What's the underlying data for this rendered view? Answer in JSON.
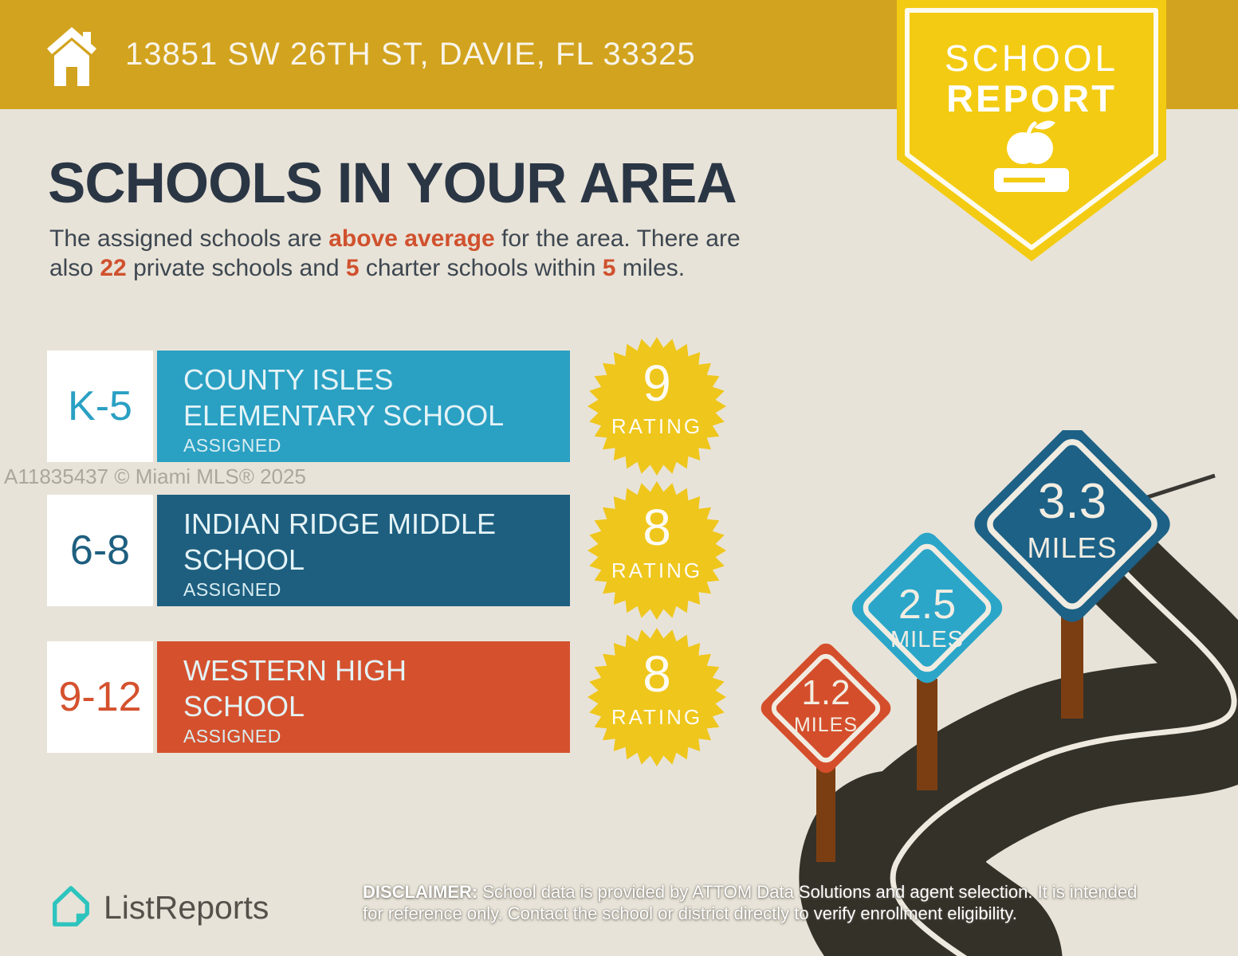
{
  "header": {
    "address": "13851 SW 26TH ST, DAVIE, FL 33325"
  },
  "ribbon": {
    "line1": "SCHOOL",
    "line2": "REPORT"
  },
  "main": {
    "title": "SCHOOLS IN YOUR AREA",
    "intro_line1": [
      {
        "t": "The assigned schools are "
      },
      {
        "t": "above average",
        "hl": true
      },
      {
        "t": " for the area. There are"
      }
    ],
    "intro_line2": [
      {
        "t": "also "
      },
      {
        "t": "22",
        "hl": true
      },
      {
        "t": " private schools and "
      },
      {
        "t": "5",
        "hl": true
      },
      {
        "t": " charter schools within "
      },
      {
        "t": "5",
        "hl": true
      },
      {
        "t": " miles."
      }
    ]
  },
  "schools": [
    {
      "grades": "K-5",
      "name_lines": [
        "COUNTY ISLES",
        "ELEMENTARY SCHOOL"
      ],
      "status": "ASSIGNED",
      "rating": "9",
      "rating_label": "RATING",
      "color": "#2AA0C3"
    },
    {
      "grades": "6-8",
      "name_lines": [
        "INDIAN RIDGE MIDDLE",
        "SCHOOL"
      ],
      "status": "ASSIGNED",
      "rating": "8",
      "rating_label": "RATING",
      "color": "#1E5F80"
    },
    {
      "grades": "9-12",
      "name_lines": [
        "WESTERN HIGH",
        "SCHOOL"
      ],
      "status": "ASSIGNED",
      "rating": "8",
      "rating_label": "RATING",
      "color": "#D5512E"
    }
  ],
  "watermark": "A11835437 © Miami MLS® 2025",
  "distance_signs": [
    {
      "value": "1.2",
      "unit": "MILES",
      "color": "#D44E2B"
    },
    {
      "value": "2.5",
      "unit": "MILES",
      "color": "#2BA6C9"
    },
    {
      "value": "3.3",
      "unit": "MILES",
      "color": "#1D6186"
    }
  ],
  "footer": {
    "brand": "ListReports",
    "disclaimer_label": "DISCLAIMER:",
    "disclaimer_lines": [
      " School data is provided by ATTOM Data Solutions and agent selection. It is intended",
      "for reference only. Contact the school or district directly to verify enrollment eligibility."
    ]
  },
  "colors": {
    "background": "#E8E3D8",
    "header_gold": "#D2A31E",
    "ribbon_yellow": "#F3CB12",
    "seal_yellow": "#EFC61B",
    "title_navy": "#2B3645",
    "body_text": "#3D4751",
    "accent_orange": "#D0512E",
    "road": "#343129",
    "road_line": "#EFEAE0",
    "post_brown": "#7B3E12",
    "logo_teal": "#2EC4BE"
  }
}
